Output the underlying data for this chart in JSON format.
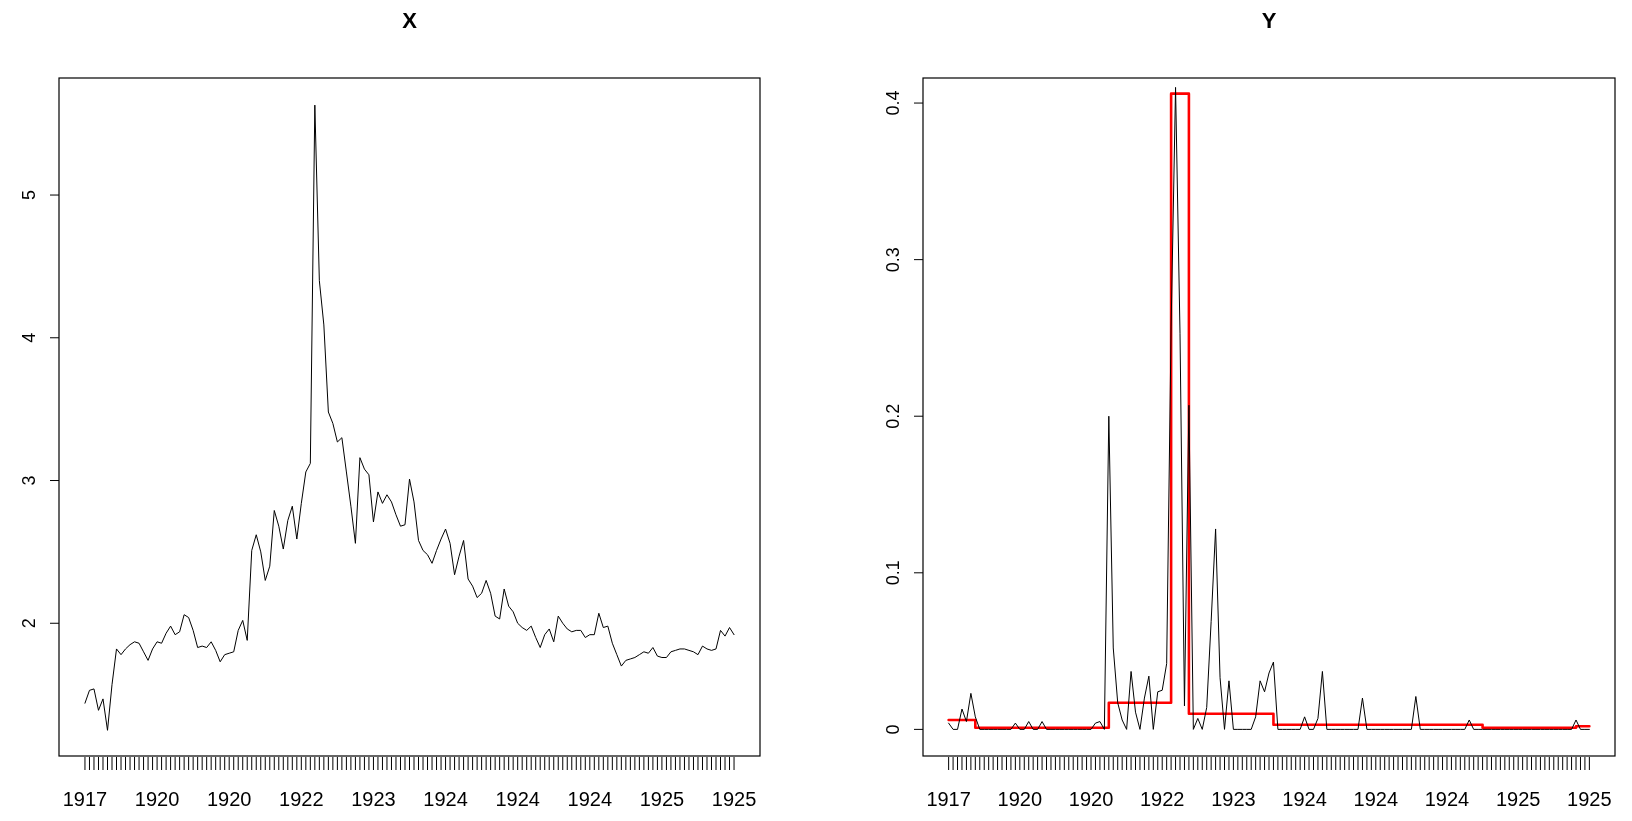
{
  "chart_data": [
    {
      "type": "line",
      "title": "X",
      "categories": [
        "1917",
        null,
        null,
        null,
        null,
        null,
        null,
        null,
        null,
        null,
        null,
        null,
        null,
        null,
        null,
        null,
        "1920",
        null,
        null,
        null,
        null,
        null,
        null,
        null,
        null,
        null,
        null,
        null,
        null,
        null,
        null,
        null,
        "1920",
        null,
        null,
        null,
        null,
        null,
        null,
        null,
        null,
        null,
        null,
        null,
        null,
        null,
        null,
        null,
        "1922",
        null,
        null,
        null,
        null,
        null,
        null,
        null,
        null,
        null,
        null,
        null,
        null,
        null,
        null,
        null,
        "1923",
        null,
        null,
        null,
        null,
        null,
        null,
        null,
        null,
        null,
        null,
        null,
        null,
        null,
        null,
        null,
        "1924",
        null,
        null,
        null,
        null,
        null,
        null,
        null,
        null,
        null,
        null,
        null,
        null,
        null,
        null,
        null,
        "1924",
        null,
        null,
        null,
        null,
        null,
        null,
        null,
        null,
        null,
        null,
        null,
        null,
        null,
        null,
        null,
        "1924",
        null,
        null,
        null,
        null,
        null,
        null,
        null,
        null,
        null,
        null,
        null,
        null,
        null,
        null,
        null,
        "1925",
        null,
        null,
        null,
        null,
        null,
        null,
        null,
        null,
        null,
        null,
        null,
        null,
        null,
        null,
        null,
        "1925"
      ],
      "series": [
        {
          "color": "#000000",
          "values": [
            1.44,
            1.53,
            1.54,
            1.39,
            1.47,
            1.25,
            1.57,
            1.82,
            1.78,
            1.82,
            1.85,
            1.87,
            1.86,
            1.8,
            1.74,
            1.82,
            1.87,
            1.86,
            1.93,
            1.98,
            1.92,
            1.94,
            2.06,
            2.04,
            1.95,
            1.83,
            1.84,
            1.83,
            1.87,
            1.81,
            1.73,
            1.78,
            1.79,
            1.8,
            1.95,
            2.02,
            1.88,
            2.51,
            2.62,
            2.5,
            2.3,
            2.4,
            2.79,
            2.68,
            2.52,
            2.72,
            2.82,
            2.59,
            2.84,
            3.06,
            3.12,
            5.63,
            4.4,
            4.09,
            3.48,
            3.4,
            3.27,
            3.3,
            3.06,
            2.82,
            2.56,
            3.16,
            3.08,
            3.04,
            2.71,
            2.92,
            2.84,
            2.9,
            2.85,
            2.76,
            2.68,
            2.69,
            3.01,
            2.85,
            2.58,
            2.51,
            2.48,
            2.42,
            2.51,
            2.59,
            2.66,
            2.56,
            2.34,
            2.47,
            2.58,
            2.31,
            2.26,
            2.18,
            2.21,
            2.3,
            2.21,
            2.05,
            2.03,
            2.24,
            2.12,
            2.08,
            2.0,
            1.97,
            1.95,
            1.98,
            1.9,
            1.83,
            1.92,
            1.96,
            1.87,
            2.05,
            2.0,
            1.96,
            1.94,
            1.95,
            1.95,
            1.9,
            1.92,
            1.92,
            2.07,
            1.97,
            1.98,
            1.86,
            1.78,
            1.7,
            1.74,
            1.75,
            1.76,
            1.78,
            1.8,
            1.79,
            1.83,
            1.77,
            1.76,
            1.76,
            1.8,
            1.81,
            1.82,
            1.82,
            1.81,
            1.8,
            1.78,
            1.84,
            1.82,
            1.81,
            1.82,
            1.95,
            1.91,
            1.97,
            1.92
          ]
        }
      ],
      "ylim": [
        1.07,
        5.82
      ],
      "yticks": [
        2,
        3,
        4,
        5
      ],
      "marker": "none",
      "line_style": "solid"
    },
    {
      "type": "line",
      "title": "Y",
      "categories": [
        "1917",
        null,
        null,
        null,
        null,
        null,
        null,
        null,
        null,
        null,
        null,
        null,
        null,
        null,
        null,
        null,
        "1920",
        null,
        null,
        null,
        null,
        null,
        null,
        null,
        null,
        null,
        null,
        null,
        null,
        null,
        null,
        null,
        "1920",
        null,
        null,
        null,
        null,
        null,
        null,
        null,
        null,
        null,
        null,
        null,
        null,
        null,
        null,
        null,
        "1922",
        null,
        null,
        null,
        null,
        null,
        null,
        null,
        null,
        null,
        null,
        null,
        null,
        null,
        null,
        null,
        "1923",
        null,
        null,
        null,
        null,
        null,
        null,
        null,
        null,
        null,
        null,
        null,
        null,
        null,
        null,
        null,
        "1924",
        null,
        null,
        null,
        null,
        null,
        null,
        null,
        null,
        null,
        null,
        null,
        null,
        null,
        null,
        null,
        "1924",
        null,
        null,
        null,
        null,
        null,
        null,
        null,
        null,
        null,
        null,
        null,
        null,
        null,
        null,
        null,
        "1924",
        null,
        null,
        null,
        null,
        null,
        null,
        null,
        null,
        null,
        null,
        null,
        null,
        null,
        null,
        null,
        "1925",
        null,
        null,
        null,
        null,
        null,
        null,
        null,
        null,
        null,
        null,
        null,
        null,
        null,
        null,
        null,
        "1925"
      ],
      "series": [
        {
          "color": "#000000",
          "values": [
            0.004,
            0,
            0,
            0.013,
            0.005,
            0.023,
            0.008,
            0,
            0,
            0,
            0,
            0,
            0,
            0,
            0,
            0.004,
            0,
            0,
            0.005,
            0,
            0,
            0.005,
            0,
            0,
            0,
            0,
            0,
            0,
            0,
            0,
            0,
            0,
            0,
            0.004,
            0.005,
            0,
            0.2,
            0.052,
            0.017,
            0.006,
            0,
            0.037,
            0.011,
            0,
            0.02,
            0.034,
            0,
            0.024,
            0.025,
            0.042,
            0.257,
            0.41,
            0.253,
            0.015,
            0.207,
            0,
            0.007,
            0,
            0.014,
            0.069,
            0.128,
            0.033,
            0,
            0.031,
            0,
            0,
            0,
            0,
            0,
            0.008,
            0.031,
            0.024,
            0.036,
            0.043,
            0,
            0,
            0,
            0,
            0,
            0,
            0.008,
            0,
            0,
            0.007,
            0.037,
            0,
            0,
            0,
            0,
            0,
            0,
            0,
            0,
            0.02,
            0,
            0,
            0,
            0,
            0,
            0,
            0,
            0,
            0,
            0,
            0,
            0.021,
            0,
            0,
            0,
            0,
            0,
            0,
            0,
            0,
            0,
            0,
            0,
            0.006,
            0,
            0,
            0,
            0,
            0,
            0,
            0,
            0,
            0,
            0,
            0,
            0,
            0,
            0,
            0,
            0,
            0,
            0,
            0,
            0,
            0,
            0,
            0,
            0.006,
            0,
            0,
            0
          ]
        },
        {
          "type": "step",
          "color": "#ff0000",
          "values": [
            0.006,
            0.006,
            0.006,
            0.006,
            0.006,
            0.006,
            0.001,
            0.001,
            0.001,
            0.001,
            0.001,
            0.001,
            0.001,
            0.001,
            0.001,
            0.001,
            0.001,
            0.001,
            0.001,
            0.001,
            0.001,
            0.001,
            0.001,
            0.001,
            0.001,
            0.001,
            0.001,
            0.001,
            0.001,
            0.001,
            0.001,
            0.001,
            0.001,
            0.001,
            0.001,
            0.001,
            0.017,
            0.017,
            0.017,
            0.017,
            0.017,
            0.017,
            0.017,
            0.017,
            0.017,
            0.017,
            0.017,
            0.017,
            0.017,
            0.017,
            0.406,
            0.406,
            0.406,
            0.406,
            0.01,
            0.01,
            0.01,
            0.01,
            0.01,
            0.01,
            0.01,
            0.01,
            0.01,
            0.01,
            0.01,
            0.01,
            0.01,
            0.01,
            0.01,
            0.01,
            0.01,
            0.01,
            0.01,
            0.003,
            0.003,
            0.003,
            0.003,
            0.003,
            0.003,
            0.003,
            0.003,
            0.003,
            0.003,
            0.003,
            0.003,
            0.003,
            0.003,
            0.003,
            0.003,
            0.003,
            0.003,
            0.003,
            0.003,
            0.003,
            0.003,
            0.003,
            0.003,
            0.003,
            0.003,
            0.003,
            0.003,
            0.003,
            0.003,
            0.003,
            0.003,
            0.003,
            0.003,
            0.003,
            0.003,
            0.003,
            0.003,
            0.003,
            0.003,
            0.003,
            0.003,
            0.003,
            0.003,
            0.003,
            0.003,
            0.003,
            0.001,
            0.001,
            0.001,
            0.001,
            0.001,
            0.001,
            0.001,
            0.001,
            0.001,
            0.001,
            0.001,
            0.001,
            0.001,
            0.001,
            0.001,
            0.001,
            0.001,
            0.001,
            0.001,
            0.001,
            0.001,
            0.002,
            0.002,
            0.002,
            0.002
          ]
        }
      ],
      "ylim": [
        -0.017,
        0.416
      ],
      "yticks": [
        0,
        0.1,
        0.2,
        0.3,
        0.4
      ],
      "marker": "none",
      "line_style": "solid"
    }
  ]
}
